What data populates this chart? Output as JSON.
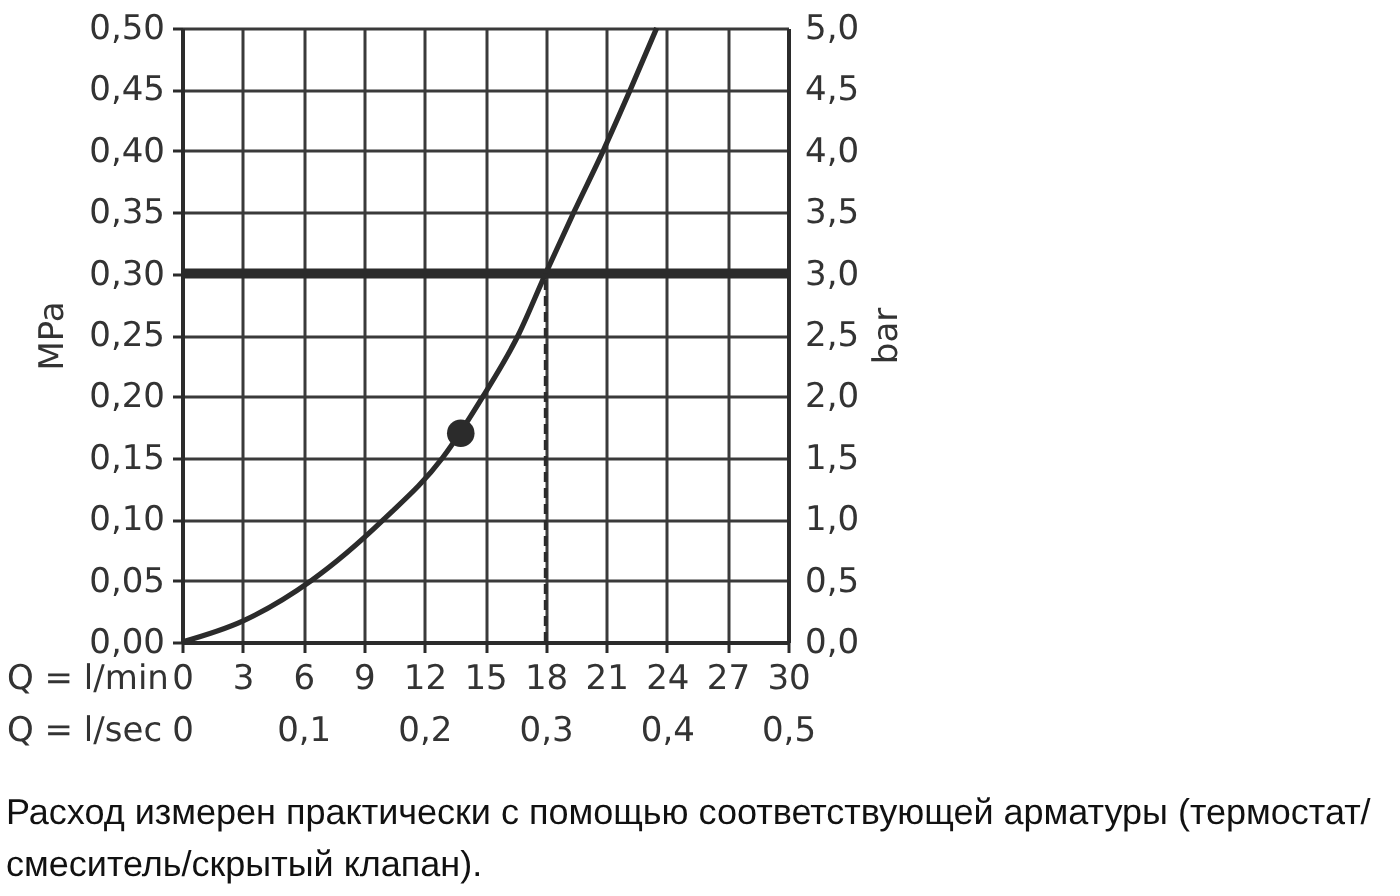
{
  "chart_data": {
    "type": "line",
    "xlabel": "Q = l/min",
    "x2label": "Q = l/sec",
    "ylabel": "MPa",
    "y2label": "bar",
    "xlim": [
      0,
      30
    ],
    "xticks": [
      0,
      3,
      6,
      9,
      12,
      15,
      18,
      21,
      24,
      27,
      30
    ],
    "x2lim": [
      0,
      0.5
    ],
    "x2ticks": [
      0,
      {
        "value": 0.1,
        "label": "0,1"
      },
      {
        "value": 0.2,
        "label": "0,2"
      },
      {
        "value": 0.3,
        "label": "0,3"
      },
      {
        "value": 0.4,
        "label": "0,4"
      },
      {
        "value": 0.5,
        "label": "0,5"
      }
    ],
    "ylim": [
      0,
      0.5
    ],
    "yticks": [
      {
        "value": 0,
        "label": "0,00"
      },
      {
        "value": 0.05,
        "label": "0,05"
      },
      {
        "value": 0.1,
        "label": "0,10"
      },
      {
        "value": 0.15,
        "label": "0,15"
      },
      {
        "value": 0.2,
        "label": "0,20"
      },
      {
        "value": 0.25,
        "label": "0,25"
      },
      {
        "value": 0.3,
        "label": "0,30"
      },
      {
        "value": 0.35,
        "label": "0,35"
      },
      {
        "value": 0.4,
        "label": "0,40"
      },
      {
        "value": 0.45,
        "label": "0,45"
      },
      {
        "value": 0.5,
        "label": "0,50"
      }
    ],
    "y2lim": [
      0,
      5
    ],
    "y2ticks": [
      {
        "value": 0,
        "label": "0,0"
      },
      {
        "value": 0.5,
        "label": "0,5"
      },
      {
        "value": 1,
        "label": "1,0"
      },
      {
        "value": 1.5,
        "label": "1,5"
      },
      {
        "value": 2,
        "label": "2,0"
      },
      {
        "value": 2.5,
        "label": "2,5"
      },
      {
        "value": 3,
        "label": "3,0"
      },
      {
        "value": 3.5,
        "label": "3,5"
      },
      {
        "value": 4,
        "label": "4,0"
      },
      {
        "value": 4.5,
        "label": "4,5"
      },
      {
        "value": 5,
        "label": "5,0"
      }
    ],
    "grid": true,
    "series": [
      {
        "color": "#2b2b2b",
        "x": [
          0,
          3,
          6.4,
          10,
          12.9,
          14.9,
          16.65,
          18,
          19.4,
          20.85,
          22.2,
          23.5
        ],
        "values": [
          0,
          0.017,
          0.05,
          0.1,
          0.15,
          0.2,
          0.25,
          0.3,
          0.35,
          0.4,
          0.45,
          0.5
        ]
      },
      {
        "type": "line",
        "line_style": "dashed",
        "color": "#2b2b2b",
        "x": [
          18,
          18
        ],
        "values": [
          0,
          0.3
        ]
      },
      {
        "type": "scatter",
        "marker": "circle",
        "color": "#2b2b2b",
        "x": [
          13.8
        ],
        "values": [
          0.17
        ]
      }
    ],
    "ref_lines": [
      {
        "axis": "y",
        "value": 0.3,
        "color": "#2b2b2b"
      }
    ],
    "annotations": [
      "Расход измерен практически с помощью соответствующей арматуры (термостат/смеситель/скрытый клапан)."
    ]
  }
}
